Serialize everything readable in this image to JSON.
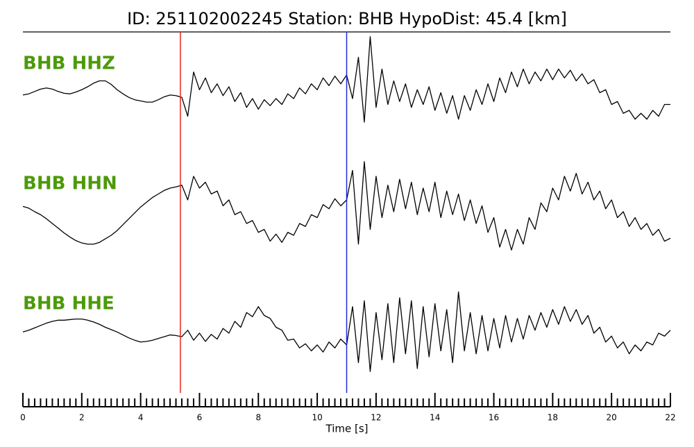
{
  "chart_data": {
    "type": "line",
    "title": "ID: 251102002245   Station: BHB   HypoDist:    45.4 [km]",
    "xlabel": "Time [s]",
    "xlim": [
      0,
      22
    ],
    "xticks": [
      0,
      2,
      4,
      6,
      8,
      10,
      12,
      14,
      16,
      18,
      20,
      22
    ],
    "xminorticks": [
      0.2,
      0.4,
      0.6,
      0.8,
      1,
      1.2,
      1.4,
      1.6,
      1.8,
      2.2,
      2.4,
      2.6,
      2.8,
      3,
      3.2,
      3.4,
      3.6,
      3.8,
      4.2,
      4.4,
      4.6,
      4.8,
      5,
      5.2,
      5.4,
      5.6,
      5.8,
      6.2,
      6.4,
      6.6,
      6.8,
      7,
      7.2,
      7.4,
      7.6,
      7.8,
      8.2,
      8.4,
      8.6,
      8.8,
      9,
      9.2,
      9.4,
      9.6,
      9.8,
      10.2,
      10.4,
      10.6,
      10.8,
      11,
      11.2,
      11.4,
      11.6,
      11.8,
      12.2,
      12.4,
      12.6,
      12.8,
      13,
      13.2,
      13.4,
      13.6,
      13.8,
      14.2,
      14.4,
      14.6,
      14.8,
      15,
      15.2,
      15.4,
      15.6,
      15.8,
      16.2,
      16.4,
      16.6,
      16.8,
      17,
      17.2,
      17.4,
      17.6,
      17.8,
      18.2,
      18.4,
      18.6,
      18.8,
      19,
      19.2,
      19.4,
      19.6,
      19.8,
      20.2,
      20.4,
      20.6,
      20.8,
      21,
      21.2,
      21.4,
      21.6,
      21.8
    ],
    "ylim": [
      -1,
      1
    ],
    "label_color": "#4c9a0a",
    "markers": [
      {
        "x": 5.35,
        "color": "#e8231c"
      },
      {
        "x": 11.0,
        "color": "#1f2bd8"
      }
    ],
    "x": [
      0,
      0.2,
      0.4,
      0.6,
      0.8,
      1,
      1.2,
      1.4,
      1.6,
      1.8,
      2,
      2.2,
      2.4,
      2.6,
      2.8,
      3,
      3.2,
      3.4,
      3.6,
      3.8,
      4,
      4.2,
      4.4,
      4.6,
      4.8,
      5,
      5.2,
      5.4,
      5.6,
      5.8,
      6,
      6.2,
      6.4,
      6.6,
      6.8,
      7,
      7.2,
      7.4,
      7.6,
      7.8,
      8,
      8.2,
      8.4,
      8.6,
      8.8,
      9,
      9.2,
      9.4,
      9.6,
      9.8,
      10,
      10.2,
      10.4,
      10.6,
      10.8,
      11,
      11.2,
      11.4,
      11.6,
      11.8,
      12,
      12.2,
      12.4,
      12.6,
      12.8,
      13,
      13.2,
      13.4,
      13.6,
      13.8,
      14,
      14.2,
      14.4,
      14.6,
      14.8,
      15,
      15.2,
      15.4,
      15.6,
      15.8,
      16,
      16.2,
      16.4,
      16.6,
      16.8,
      17,
      17.2,
      17.4,
      17.6,
      17.8,
      18,
      18.2,
      18.4,
      18.6,
      18.8,
      19,
      19.2,
      19.4,
      19.6,
      19.8,
      20,
      20.2,
      20.4,
      20.6,
      20.8,
      21,
      21.2,
      21.4,
      21.6,
      21.8,
      22
    ],
    "series": [
      {
        "name": "BHB HHZ",
        "color": "#000000",
        "values": [
          -0.14,
          -0.12,
          -0.08,
          -0.04,
          -0.02,
          -0.04,
          -0.08,
          -0.11,
          -0.12,
          -0.09,
          -0.05,
          0.0,
          0.06,
          0.1,
          0.1,
          0.04,
          -0.05,
          -0.12,
          -0.18,
          -0.22,
          -0.24,
          -0.26,
          -0.26,
          -0.22,
          -0.17,
          -0.14,
          -0.15,
          -0.18,
          -0.5,
          0.25,
          -0.05,
          0.15,
          -0.1,
          0.05,
          -0.15,
          0.0,
          -0.25,
          -0.1,
          -0.35,
          -0.2,
          -0.38,
          -0.22,
          -0.32,
          -0.2,
          -0.3,
          -0.12,
          -0.2,
          -0.02,
          -0.12,
          0.05,
          -0.05,
          0.15,
          0.02,
          0.18,
          0.05,
          0.2,
          -0.2,
          0.5,
          -0.6,
          0.85,
          -0.35,
          0.3,
          -0.3,
          0.1,
          -0.25,
          0.05,
          -0.35,
          -0.05,
          -0.3,
          0.0,
          -0.4,
          -0.1,
          -0.45,
          -0.15,
          -0.55,
          -0.15,
          -0.4,
          -0.05,
          -0.3,
          0.05,
          -0.25,
          0.15,
          -0.1,
          0.25,
          0.0,
          0.3,
          0.05,
          0.25,
          0.1,
          0.3,
          0.12,
          0.3,
          0.15,
          0.28,
          0.1,
          0.22,
          0.05,
          0.12,
          -0.1,
          -0.05,
          -0.3,
          -0.25,
          -0.45,
          -0.4,
          -0.55,
          -0.45,
          -0.55,
          -0.4,
          -0.5,
          -0.3,
          -0.3
        ]
      },
      {
        "name": "BHB HHN",
        "color": "#000000",
        "values": [
          0.09,
          0.06,
          0.0,
          -0.05,
          -0.12,
          -0.2,
          -0.28,
          -0.36,
          -0.43,
          -0.49,
          -0.53,
          -0.55,
          -0.55,
          -0.52,
          -0.46,
          -0.4,
          -0.32,
          -0.22,
          -0.12,
          -0.02,
          0.08,
          0.16,
          0.24,
          0.3,
          0.36,
          0.4,
          0.42,
          0.45,
          0.2,
          0.6,
          0.4,
          0.5,
          0.3,
          0.35,
          0.1,
          0.2,
          -0.05,
          0.0,
          -0.2,
          -0.15,
          -0.35,
          -0.3,
          -0.5,
          -0.38,
          -0.52,
          -0.35,
          -0.4,
          -0.2,
          -0.25,
          -0.05,
          -0.1,
          0.12,
          0.05,
          0.22,
          0.1,
          0.2,
          0.7,
          -0.55,
          0.85,
          -0.3,
          0.6,
          -0.1,
          0.45,
          0.0,
          0.55,
          0.05,
          0.5,
          -0.05,
          0.4,
          0.0,
          0.5,
          -0.1,
          0.35,
          -0.05,
          0.3,
          -0.15,
          0.2,
          -0.2,
          0.1,
          -0.35,
          -0.1,
          -0.6,
          -0.3,
          -0.65,
          -0.3,
          -0.55,
          -0.1,
          -0.3,
          0.15,
          0.0,
          0.4,
          0.2,
          0.6,
          0.35,
          0.65,
          0.3,
          0.5,
          0.2,
          0.35,
          0.05,
          0.2,
          -0.1,
          0.0,
          -0.25,
          -0.1,
          -0.3,
          -0.2,
          -0.4,
          -0.3,
          -0.5,
          -0.45
        ]
      },
      {
        "name": "BHB HHE",
        "color": "#000000",
        "values": [
          0.02,
          0.05,
          0.09,
          0.13,
          0.17,
          0.2,
          0.22,
          0.22,
          0.23,
          0.24,
          0.24,
          0.22,
          0.19,
          0.15,
          0.1,
          0.06,
          0.02,
          -0.03,
          -0.08,
          -0.12,
          -0.15,
          -0.14,
          -0.12,
          -0.09,
          -0.06,
          -0.03,
          -0.04,
          -0.06,
          0.05,
          -0.12,
          0.0,
          -0.14,
          -0.02,
          -0.1,
          0.08,
          0.0,
          0.2,
          0.1,
          0.35,
          0.28,
          0.45,
          0.3,
          0.25,
          0.1,
          0.05,
          -0.12,
          -0.1,
          -0.25,
          -0.18,
          -0.3,
          -0.2,
          -0.32,
          -0.15,
          -0.25,
          -0.1,
          -0.2,
          0.45,
          -0.5,
          0.55,
          -0.65,
          0.35,
          -0.45,
          0.5,
          -0.5,
          0.6,
          -0.35,
          0.55,
          -0.6,
          0.45,
          -0.4,
          0.5,
          -0.3,
          0.4,
          -0.5,
          0.7,
          -0.3,
          0.35,
          -0.35,
          0.3,
          -0.3,
          0.25,
          -0.25,
          0.3,
          -0.15,
          0.25,
          -0.1,
          0.3,
          0.05,
          0.35,
          0.1,
          0.4,
          0.15,
          0.45,
          0.2,
          0.4,
          0.15,
          0.3,
          0.0,
          0.1,
          -0.15,
          -0.05,
          -0.25,
          -0.15,
          -0.35,
          -0.2,
          -0.3,
          -0.15,
          -0.2,
          0.0,
          -0.05,
          0.05
        ]
      }
    ]
  }
}
